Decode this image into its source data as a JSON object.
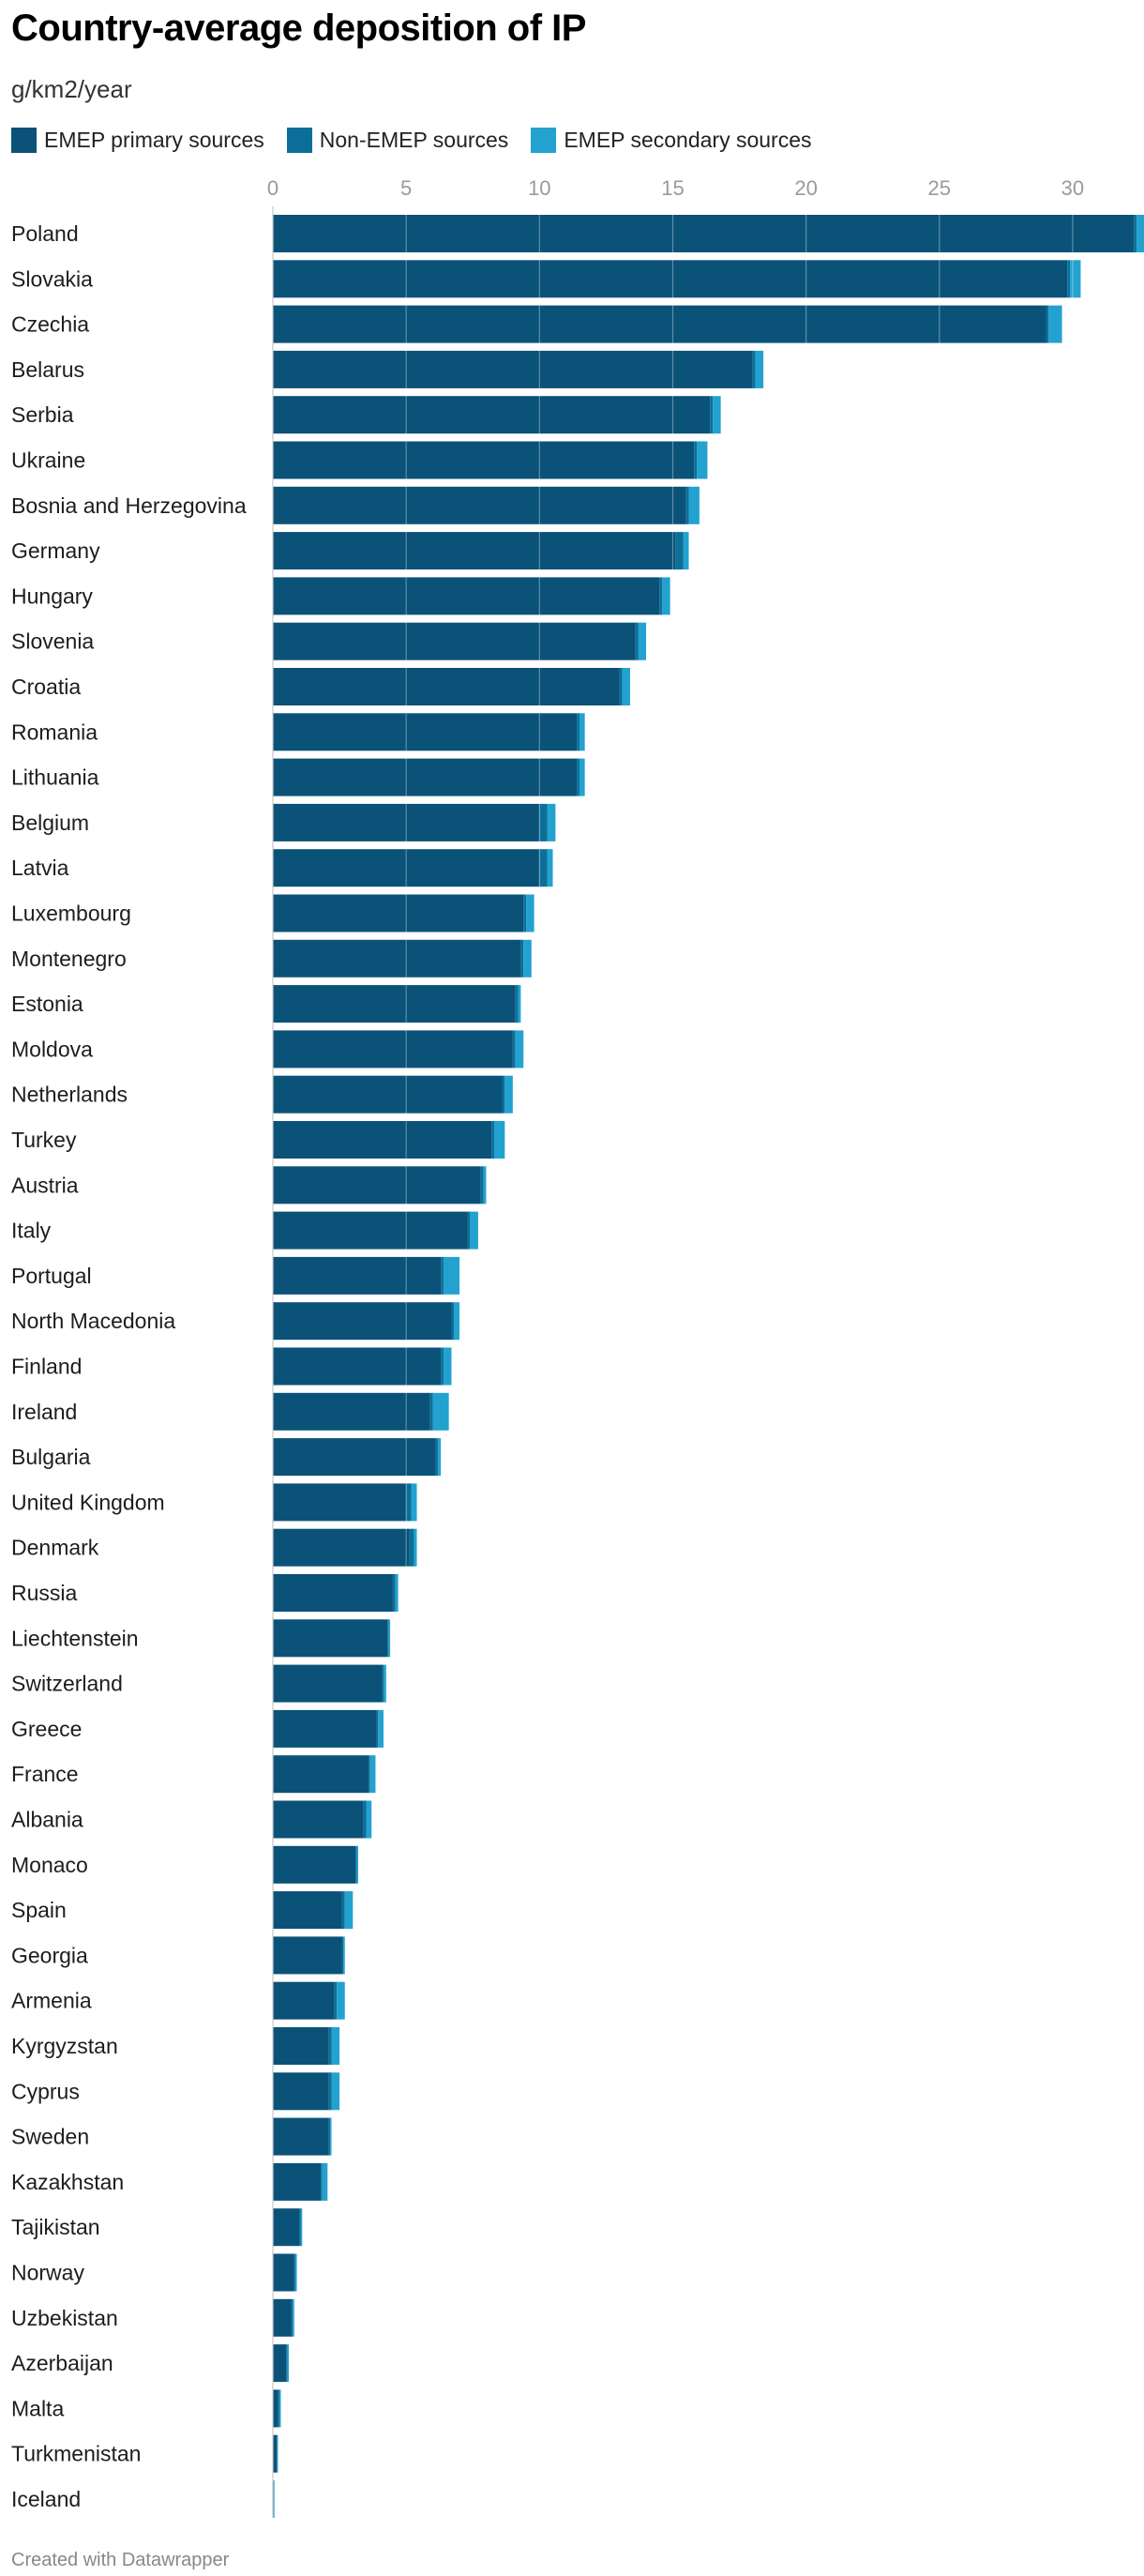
{
  "chart_data": {
    "type": "bar",
    "orientation": "horizontal",
    "stacked": true,
    "title": "Country-average deposition of IP",
    "subtitle": "g/km2/year",
    "xlim": [
      0,
      32.5
    ],
    "xticks": [
      0,
      5,
      10,
      15,
      20,
      25,
      30
    ],
    "grid": true,
    "legend_position": "top-left",
    "colors": [
      "#0b5278",
      "#0b6f99",
      "#23a2d0"
    ],
    "categories": [
      "Poland",
      "Slovakia",
      "Czechia",
      "Belarus",
      "Serbia",
      "Ukraine",
      "Bosnia and Herzegovina",
      "Germany",
      "Hungary",
      "Slovenia",
      "Croatia",
      "Romania",
      "Lithuania",
      "Belgium",
      "Latvia",
      "Luxembourg",
      "Montenegro",
      "Estonia",
      "Moldova",
      "Netherlands",
      "Turkey",
      "Austria",
      "Italy",
      "Portugal",
      "North Macedonia",
      "Finland",
      "Ireland",
      "Bulgaria",
      "United Kingdom",
      "Denmark",
      "Russia",
      "Liechtenstein",
      "Switzerland",
      "Greece",
      "France",
      "Albania",
      "Monaco",
      "Spain",
      "Georgia",
      "Armenia",
      "Kyrgyzstan",
      "Cyprus",
      "Sweden",
      "Kazakhstan",
      "Tajikistan",
      "Norway",
      "Uzbekistan",
      "Azerbaijan",
      "Malta",
      "Turkmenistan",
      "Iceland"
    ],
    "series": [
      {
        "name": "EMEP primary sources",
        "values": [
          32.3,
          29.8,
          29.0,
          18.0,
          16.4,
          15.8,
          15.5,
          15.1,
          14.5,
          13.6,
          13.0,
          11.4,
          11.4,
          10.0,
          10.0,
          9.4,
          9.3,
          9.1,
          9.0,
          8.6,
          8.2,
          7.8,
          7.3,
          6.3,
          6.7,
          6.3,
          5.9,
          6.1,
          5.0,
          5.1,
          4.5,
          4.3,
          4.1,
          3.9,
          3.6,
          3.4,
          3.1,
          2.6,
          2.6,
          2.3,
          2.1,
          2.1,
          2.1,
          1.8,
          1.0,
          0.8,
          0.7,
          0.5,
          0.2,
          0.15,
          0.02
        ]
      },
      {
        "name": "Non-EMEP sources",
        "values": [
          0.1,
          0.1,
          0.1,
          0.1,
          0.1,
          0.1,
          0.1,
          0.3,
          0.1,
          0.1,
          0.1,
          0.1,
          0.1,
          0.3,
          0.3,
          0.1,
          0.1,
          0.1,
          0.1,
          0.1,
          0.1,
          0.1,
          0.1,
          0.1,
          0.1,
          0.1,
          0.1,
          0.1,
          0.2,
          0.2,
          0.1,
          0.05,
          0.05,
          0.05,
          0.05,
          0.1,
          0.05,
          0.1,
          0.05,
          0.1,
          0.1,
          0.1,
          0.05,
          0.05,
          0.05,
          0.05,
          0.05,
          0.05,
          0.05,
          0.02,
          0.02
        ]
      },
      {
        "name": "EMEP secondary sources",
        "values": [
          0.5,
          0.4,
          0.5,
          0.3,
          0.3,
          0.4,
          0.4,
          0.2,
          0.3,
          0.3,
          0.3,
          0.2,
          0.2,
          0.3,
          0.2,
          0.3,
          0.3,
          0.1,
          0.3,
          0.3,
          0.4,
          0.1,
          0.3,
          0.6,
          0.2,
          0.3,
          0.6,
          0.1,
          0.2,
          0.1,
          0.1,
          0.05,
          0.1,
          0.2,
          0.2,
          0.2,
          0.05,
          0.3,
          0.05,
          0.3,
          0.3,
          0.3,
          0.05,
          0.2,
          0.05,
          0.05,
          0.05,
          0.05,
          0.05,
          0.02,
          0.02
        ]
      }
    ]
  },
  "legend": [
    {
      "label": "EMEP primary sources",
      "color": "#0b5278"
    },
    {
      "label": "Non-EMEP sources",
      "color": "#0b6f99"
    },
    {
      "label": "EMEP secondary sources",
      "color": "#23a2d0"
    }
  ],
  "footer": "Created with Datawrapper"
}
